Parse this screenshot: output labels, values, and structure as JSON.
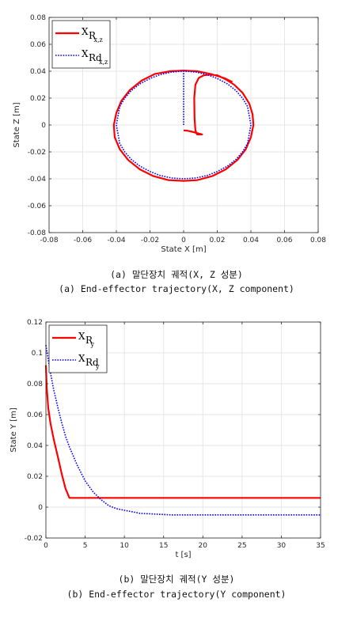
{
  "chart_data": [
    {
      "type": "line",
      "xlabel": "State X [m]",
      "ylabel": "State Z [m]",
      "xlim": [
        -0.08,
        0.08
      ],
      "ylim": [
        -0.08,
        0.08
      ],
      "xticks": [
        "-0.08",
        "-0.06",
        "-0.04",
        "-0.02",
        "0",
        "0.02",
        "0.04",
        "0.06",
        "0.08"
      ],
      "yticks": [
        "-0.08",
        "-0.06",
        "-0.04",
        "-0.02",
        "0",
        "0.02",
        "0.04",
        "0.06",
        "0.08"
      ],
      "grid": true,
      "legend_position": "top-left",
      "series": [
        {
          "name_base": "X",
          "name_sub": "R",
          "name_subsub": "x,z",
          "color": "#ff0000",
          "style": "solid",
          "x": [
            0.0,
            0.002,
            0.005,
            0.008,
            0.011,
            0.009,
            0.008,
            0.007,
            0.0065,
            0.0063,
            0.007,
            0.009,
            0.012,
            0.016,
            0.02,
            0.025,
            0.03,
            0.035,
            0.039,
            0.041,
            0.0415,
            0.04,
            0.037,
            0.032,
            0.025,
            0.017,
            0.008,
            0.0,
            -0.009,
            -0.018,
            -0.026,
            -0.033,
            -0.038,
            -0.041,
            -0.0415,
            -0.04,
            -0.037,
            -0.032,
            -0.025,
            -0.017,
            -0.008,
            0.0,
            0.008,
            0.016,
            0.024,
            0.029
          ],
          "y": [
            -0.004,
            -0.0042,
            -0.005,
            -0.006,
            -0.007,
            -0.007,
            -0.007,
            -0.004,
            0.005,
            0.02,
            0.03,
            0.035,
            0.037,
            0.0375,
            0.037,
            0.034,
            0.03,
            0.024,
            0.016,
            0.008,
            0.0,
            -0.009,
            -0.018,
            -0.026,
            -0.033,
            -0.038,
            -0.041,
            -0.0415,
            -0.041,
            -0.038,
            -0.033,
            -0.026,
            -0.018,
            -0.009,
            0.0,
            0.009,
            0.018,
            0.026,
            0.033,
            0.038,
            0.04,
            0.0405,
            0.04,
            0.038,
            0.035,
            0.032
          ]
        },
        {
          "name_base": "X",
          "name_sub": "Rd",
          "name_subsub": "x,z",
          "color": "#0000ff",
          "style": "dotted",
          "x": [
            0.0,
            0.0,
            0.0,
            0.0,
            0.0,
            0.007,
            0.014,
            0.02,
            0.026,
            0.031,
            0.035,
            0.038,
            0.04,
            0.038,
            0.035,
            0.031,
            0.026,
            0.02,
            0.014,
            0.007,
            0.0,
            -0.007,
            -0.014,
            -0.02,
            -0.026,
            -0.031,
            -0.035,
            -0.038,
            -0.04,
            -0.038,
            -0.035,
            -0.031,
            -0.026,
            -0.02,
            -0.014,
            -0.007,
            0.0
          ],
          "y": [
            0.0,
            0.01,
            0.02,
            0.03,
            0.04,
            0.0394,
            0.0375,
            0.0346,
            0.0306,
            0.0257,
            0.02,
            0.0137,
            0.0,
            -0.0137,
            -0.02,
            -0.0257,
            -0.0306,
            -0.0346,
            -0.0375,
            -0.0394,
            -0.04,
            -0.0394,
            -0.0375,
            -0.0346,
            -0.0306,
            -0.0257,
            -0.02,
            -0.0137,
            0.0,
            0.0137,
            0.02,
            0.0257,
            0.0306,
            0.0346,
            0.0375,
            0.0394,
            0.04
          ]
        }
      ]
    },
    {
      "type": "line",
      "xlabel": "t [s]",
      "ylabel": "State Y [m]",
      "xlim": [
        0,
        35
      ],
      "ylim": [
        -0.02,
        0.12
      ],
      "xticks": [
        "0",
        "5",
        "10",
        "15",
        "20",
        "25",
        "30",
        "35"
      ],
      "yticks": [
        "-0.02",
        "0",
        "0.02",
        "0.04",
        "0.06",
        "0.08",
        "0.1",
        "0.12"
      ],
      "grid": true,
      "legend_position": "top-left",
      "series": [
        {
          "name_base": "X",
          "name_sub": "R",
          "name_subsub": "y",
          "color": "#ff0000",
          "style": "solid",
          "x": [
            0,
            0.1,
            0.3,
            0.6,
            1.0,
            1.5,
            2.0,
            2.5,
            3.0,
            3.3,
            35
          ],
          "y": [
            0.092,
            0.078,
            0.064,
            0.054,
            0.044,
            0.033,
            0.022,
            0.012,
            0.006,
            0.006,
            0.006
          ]
        },
        {
          "name_base": "X",
          "name_sub": "Rd",
          "name_subsub": "y",
          "color": "#0000ff",
          "style": "dotted",
          "x": [
            0,
            0.5,
            1,
            1.5,
            2,
            2.5,
            3,
            4,
            5,
            6,
            7,
            8,
            9,
            10,
            12,
            14,
            16,
            20,
            25,
            30,
            35
          ],
          "y": [
            0.105,
            0.089,
            0.076,
            0.065,
            0.055,
            0.046,
            0.039,
            0.027,
            0.017,
            0.01,
            0.005,
            0.001,
            -0.001,
            -0.002,
            -0.004,
            -0.0045,
            -0.005,
            -0.005,
            -0.005,
            -0.005,
            -0.005
          ]
        }
      ]
    }
  ],
  "captions": {
    "a_korean": "(a) 말단장치 궤적(X, Z 성분)",
    "a_english": "(a) End-effector trajectory(X, Z component)",
    "b_korean": "(b) 말단장치 궤적(Y 성분)",
    "b_english": "(b) End-effector trajectory(Y component)"
  },
  "colors": {
    "axis": "#262626",
    "grid": "#e6e6e6",
    "red": "#ff0000",
    "blue": "#0000ff"
  }
}
